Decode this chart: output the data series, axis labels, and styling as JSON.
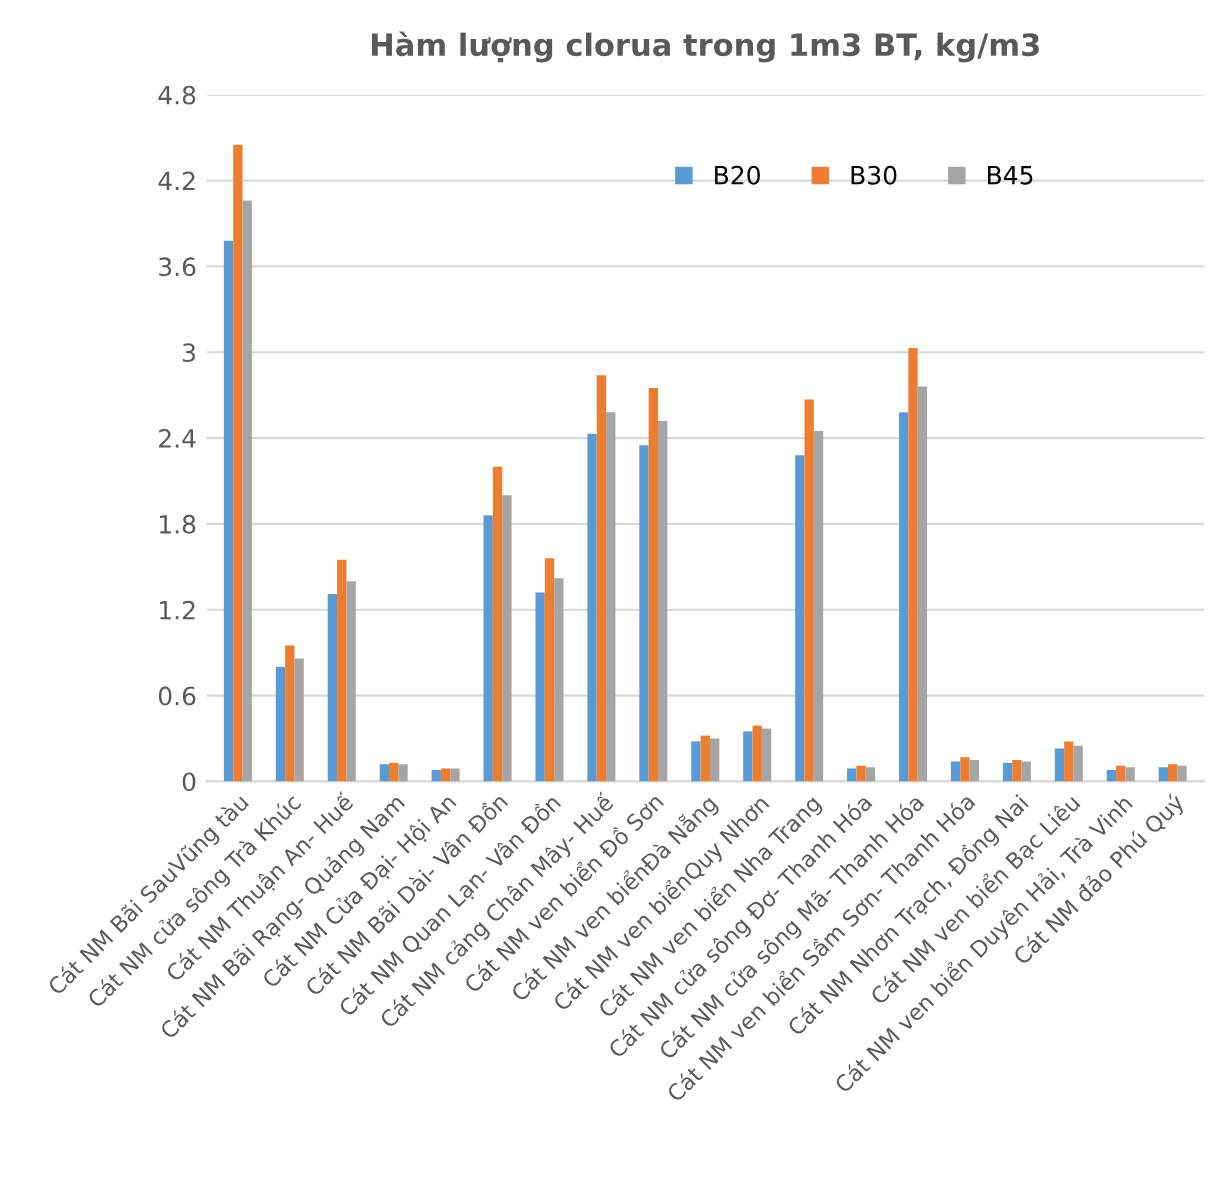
{
  "chart_data": {
    "type": "bar",
    "title": "Hàm lượng clorua trong 1m3 BT, kg/m3",
    "categories": [
      "Cát NM Bãi SauVũng tàu",
      "Cát NM cửa sông Trà Khúc",
      "Cát NM Thuận An- Huế",
      "Cát NM Bãi Rạng- Quảng Nam",
      "Cát NM Cửa Đại- Hội An",
      "Cát NM Bãi Dài- Vân Đồn",
      "Cát NM Quan Lạn- Vân Đồn",
      "Cát NM cảng Chân Mây- Huế",
      "Cát NM ven biển Đồ Sơn",
      "Cát NM ven biểnĐà Nẵng",
      "Cát NM ven biểnQuy Nhơn",
      "Cát NM ven biển Nha Trang",
      "Cát NM cửa sông Đơ- Thanh Hóa",
      "Cát NM cửa sông Mã- Thanh Hóa",
      "Cát NM ven biển Sầm Sơn- Thanh Hóa",
      "Cát NM Nhơn Trạch, Đồng Nai",
      "Cát NM ven biển Bạc Liêu",
      "Cát NM ven biển Duyên Hải, Trà Vinh",
      "Cát NM đảo Phú Quý"
    ],
    "series": [
      {
        "name": "B20",
        "color": "#5b9bd5",
        "values": [
          3.78,
          0.8,
          1.31,
          0.12,
          0.08,
          1.86,
          1.32,
          2.43,
          2.35,
          0.28,
          0.35,
          2.28,
          0.09,
          2.58,
          0.14,
          0.13,
          0.23,
          0.08,
          0.1
        ]
      },
      {
        "name": "B30",
        "color": "#ed7d31",
        "values": [
          4.45,
          0.95,
          1.55,
          0.13,
          0.09,
          2.2,
          1.56,
          2.84,
          2.75,
          0.32,
          0.39,
          2.67,
          0.11,
          3.03,
          0.17,
          0.15,
          0.28,
          0.11,
          0.12
        ]
      },
      {
        "name": "B45",
        "color": "#a5a5a5",
        "values": [
          4.06,
          0.86,
          1.4,
          0.12,
          0.09,
          2.0,
          1.42,
          2.58,
          2.52,
          0.3,
          0.37,
          2.45,
          0.1,
          2.76,
          0.15,
          0.14,
          0.25,
          0.1,
          0.11
        ]
      }
    ],
    "ylim": [
      0,
      4.8
    ],
    "yticks": [
      0,
      0.6,
      1.2,
      1.8,
      2.4,
      3,
      3.6,
      4.2,
      4.8
    ],
    "grid": "y",
    "legend": "top"
  }
}
